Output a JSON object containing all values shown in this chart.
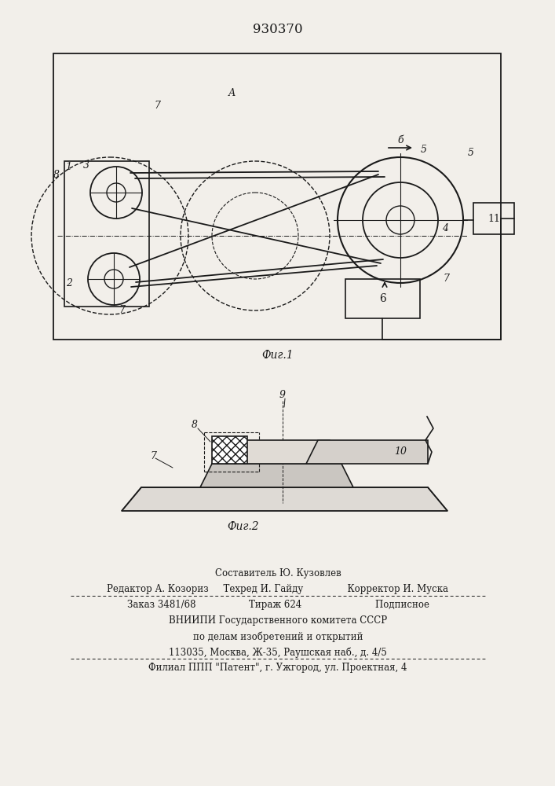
{
  "title": "930370",
  "fig1_caption": "Фиг.1",
  "fig2_caption": "Фиг.2",
  "bg_color": "#f2efea",
  "line_color": "#1a1a1a",
  "footer_lines": [
    "Составитель Ю. Кузовлев",
    "Редактор А. Козориз     Техред И. Гайду               Корректор И. Муска",
    "Заказ 3481/68                  Тираж 624                         Подписное",
    "ВНИИПИ Государственного комитета СССР",
    "по делам изобретений и открытий",
    "113035, Москва, Ж-35, Раушская наб., д. 4/5",
    "Филиал ППП \"Патент\", г. Ужгород, ул. Проектная, 4"
  ]
}
